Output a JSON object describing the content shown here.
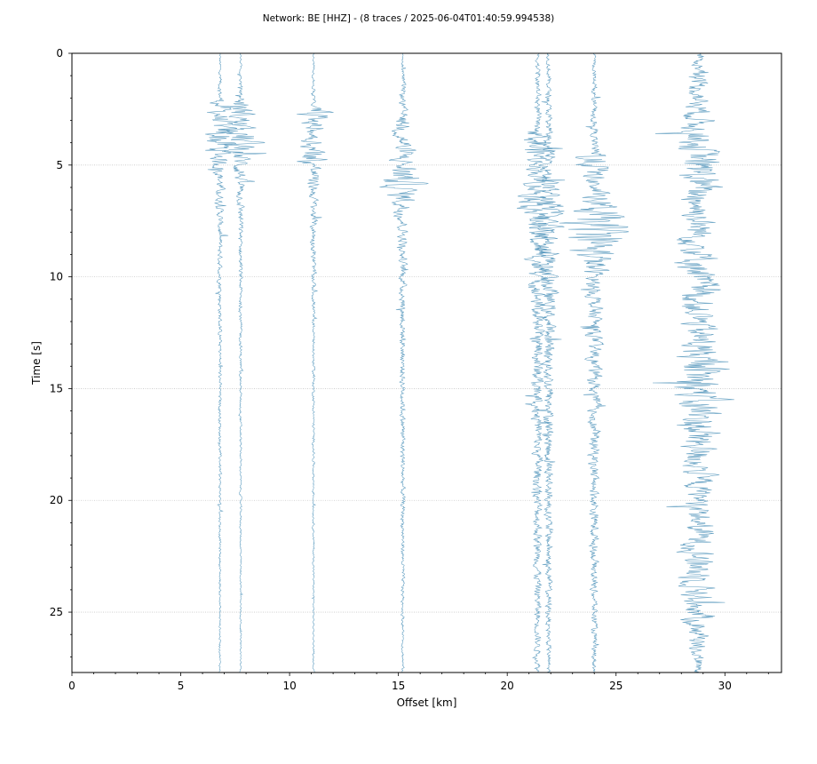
{
  "chart_data": {
    "type": "line",
    "title": "Network: BE [HHZ] - (8 traces / 2025-06-04T01:40:59.994538)",
    "xlabel": "Offset [km]",
    "ylabel": "Time [s]",
    "xlim": [
      0,
      32.6
    ],
    "ylim": [
      27.7,
      0
    ],
    "y_inverted": true,
    "xticks": [
      0,
      5,
      10,
      15,
      20,
      25,
      30
    ],
    "xtick_labels": [
      "0",
      "5",
      "10",
      "15",
      "20",
      "25",
      "30"
    ],
    "yticks": [
      0,
      5,
      10,
      15,
      20,
      25
    ],
    "ytick_labels": [
      "0",
      "5",
      "10",
      "15",
      "20",
      "25"
    ],
    "grid": {
      "axis": "y",
      "style": "dotted"
    },
    "trace_color": "#4a90b8",
    "series": [
      {
        "offset_km": 6.8,
        "wiggle_amplitude_km": [
          [
            0,
            0.06
          ],
          [
            2.0,
            0.15
          ],
          [
            2.3,
            0.9
          ],
          [
            3.3,
            1.0
          ],
          [
            3.9,
            1.5
          ],
          [
            4.6,
            0.8
          ],
          [
            5.5,
            0.35
          ],
          [
            8.0,
            0.18
          ],
          [
            15.0,
            0.1
          ],
          [
            27.7,
            0.06
          ]
        ]
      },
      {
        "offset_km": 7.75,
        "wiggle_amplitude_km": [
          [
            0,
            0.05
          ],
          [
            2.0,
            0.15
          ],
          [
            2.3,
            1.0
          ],
          [
            3.5,
            0.9
          ],
          [
            3.9,
            1.7
          ],
          [
            4.7,
            0.8
          ],
          [
            5.8,
            0.35
          ],
          [
            8.0,
            0.15
          ],
          [
            15.0,
            0.08
          ],
          [
            27.7,
            0.05
          ]
        ]
      },
      {
        "offset_km": 11.1,
        "wiggle_amplitude_km": [
          [
            0,
            0.04
          ],
          [
            2.4,
            0.15
          ],
          [
            2.6,
            1.3
          ],
          [
            3.5,
            0.6
          ],
          [
            4.8,
            1.2
          ],
          [
            5.2,
            0.5
          ],
          [
            7.0,
            0.25
          ],
          [
            12.0,
            0.1
          ],
          [
            27.7,
            0.05
          ]
        ]
      },
      {
        "offset_km": 15.2,
        "wiggle_amplitude_km": [
          [
            0,
            0.05
          ],
          [
            2.8,
            0.3
          ],
          [
            3.2,
            0.7
          ],
          [
            5.0,
            0.9
          ],
          [
            5.6,
            1.6
          ],
          [
            6.2,
            1.2
          ],
          [
            7.5,
            0.4
          ],
          [
            10.0,
            0.25
          ],
          [
            20.0,
            0.15
          ],
          [
            27.7,
            0.08
          ]
        ]
      },
      {
        "offset_km": 21.4,
        "wiggle_amplitude_km": [
          [
            0,
            0.15
          ],
          [
            3.5,
            0.25
          ],
          [
            4.1,
            1.5
          ],
          [
            5.0,
            0.6
          ],
          [
            7.2,
            1.3
          ],
          [
            8.0,
            0.9
          ],
          [
            11.0,
            0.55
          ],
          [
            18.0,
            0.35
          ],
          [
            27.7,
            0.2
          ]
        ]
      },
      {
        "offset_km": 21.9,
        "wiggle_amplitude_km": [
          [
            0,
            0.12
          ],
          [
            3.5,
            0.25
          ],
          [
            5.0,
            0.5
          ],
          [
            7.2,
            1.1
          ],
          [
            8.2,
            0.9
          ],
          [
            12.0,
            0.45
          ],
          [
            20.0,
            0.3
          ],
          [
            27.7,
            0.15
          ]
        ]
      },
      {
        "offset_km": 24.0,
        "wiggle_amplitude_km": [
          [
            0,
            0.1
          ],
          [
            4.3,
            0.3
          ],
          [
            4.6,
            1.5
          ],
          [
            6.0,
            0.6
          ],
          [
            7.8,
            2.4
          ],
          [
            9.0,
            1.6
          ],
          [
            10.0,
            0.6
          ],
          [
            15.0,
            0.45
          ],
          [
            22.0,
            0.3
          ],
          [
            27.7,
            0.15
          ]
        ]
      },
      {
        "offset_km": 28.8,
        "wiggle_amplitude_km": [
          [
            0,
            0.3
          ],
          [
            1.5,
            0.7
          ],
          [
            3.5,
            1.2
          ],
          [
            5.3,
            1.7
          ],
          [
            7.0,
            1.1
          ],
          [
            9.3,
            1.5
          ],
          [
            12.0,
            1.2
          ],
          [
            15.5,
            1.9
          ],
          [
            20.0,
            0.9
          ],
          [
            23.0,
            1.3
          ],
          [
            25.3,
            1.1
          ],
          [
            27.0,
            0.5
          ],
          [
            27.7,
            0.3
          ]
        ]
      }
    ]
  }
}
